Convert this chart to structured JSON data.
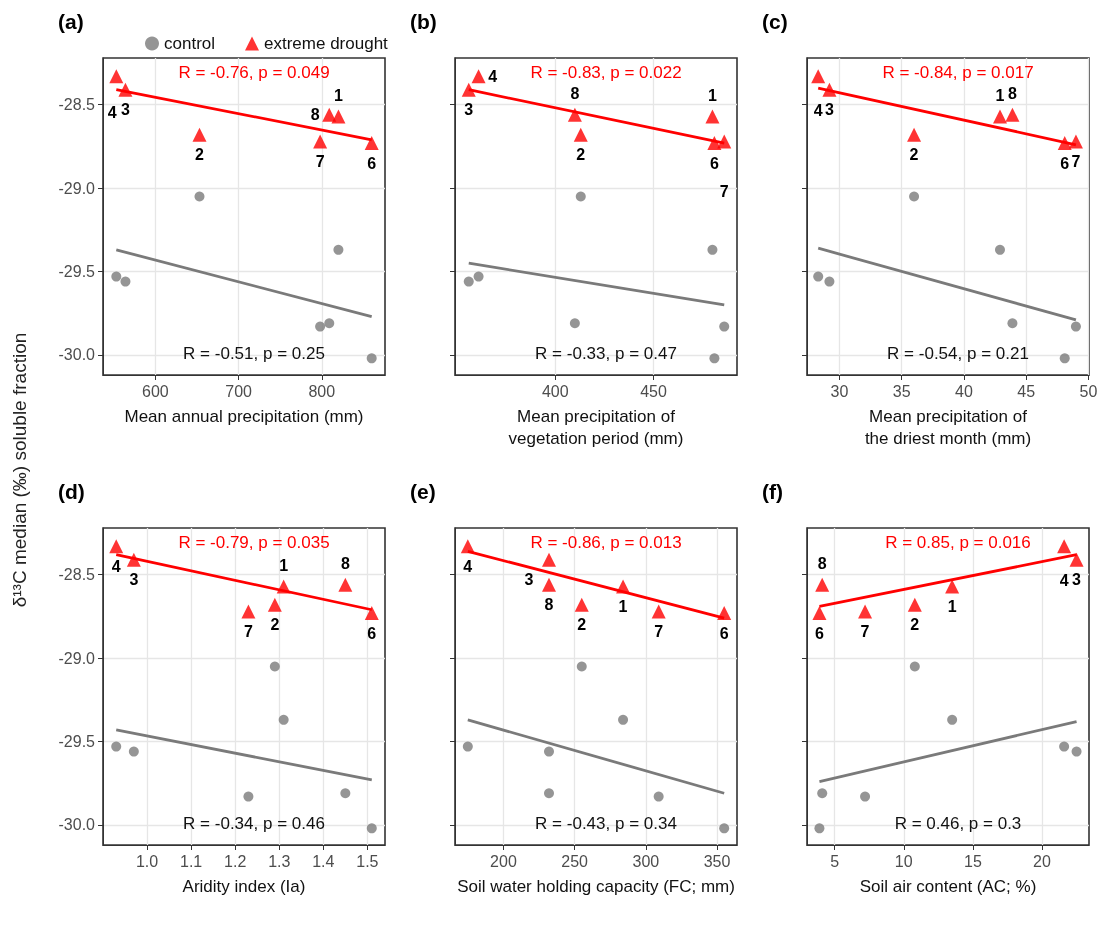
{
  "chart_data": [
    {
      "type": "scatter",
      "title": "(a)",
      "xlabel": "Mean annual precipitation (mm)",
      "ylabel": "δ¹³C median (‰) soluble fraction",
      "x": [
        820,
        653,
        564,
        553,
        860,
        798,
        809
      ],
      "xlim": [
        537,
        876
      ],
      "xticks": [
        600,
        700,
        800
      ],
      "ylim": [
        -30.12,
        -28.22
      ],
      "yticks": [
        {
          "value": -30,
          "label": "-30.0"
        },
        {
          "value": -29.5,
          "label": "-29.5"
        },
        {
          "value": -29,
          "label": "-29.0"
        },
        {
          "value": -28.5,
          "label": "-28.5"
        }
      ],
      "grid": true,
      "legend": "top",
      "series": [
        {
          "name": "control",
          "color": "#7a7a7a",
          "marker": "circle",
          "values": [
            -29.37,
            -29.05,
            -29.56,
            -29.53,
            -30.02,
            -29.83,
            -29.81
          ]
        },
        {
          "name": "extreme drought",
          "color": "#ff0000",
          "marker": "triangle",
          "values": [
            -28.57,
            -28.68,
            -28.41,
            -28.33,
            -28.73,
            -28.72,
            -28.56
          ]
        },
        {
          "type": "line",
          "color": "#7a7a7a",
          "marker": "none",
          "x": [
            553,
            860
          ],
          "values": [
            -29.37,
            -29.77
          ]
        },
        {
          "type": "line",
          "color": "#ff0000",
          "marker": "none",
          "x": [
            553,
            860
          ],
          "values": [
            -28.41,
            -28.71
          ]
        }
      ],
      "annotations": [
        "R = -0.76, p = 0.049",
        "R = -0.51, p = 0.25",
        {
          "text": "1",
          "x": 820,
          "y": -28.57
        },
        {
          "text": "2",
          "x": 653,
          "y": -28.68
        },
        {
          "text": "3",
          "x": 564,
          "y": -28.41
        },
        {
          "text": "4",
          "x": 553,
          "y": -28.33
        },
        {
          "text": "6",
          "x": 860,
          "y": -28.73
        },
        {
          "text": "7",
          "x": 798,
          "y": -28.72
        },
        {
          "text": "8",
          "x": 809,
          "y": -28.56
        }
      ]
    },
    {
      "type": "scatter",
      "title": "(b)",
      "xlabel": "Mean precipitation of vegetation period (mm)",
      "x": [
        480,
        413,
        356,
        361,
        481,
        486,
        410
      ],
      "xlim": [
        349,
        492.5
      ],
      "xticks": [
        400,
        450
      ],
      "ylim": [
        -30.12,
        -28.22
      ],
      "yticks": [
        -30,
        -29.5,
        -29,
        -28.5
      ],
      "grid": true,
      "tick_labels": "x",
      "series": [
        {
          "color": "#7a7a7a",
          "marker": "circle",
          "values": [
            -29.37,
            -29.05,
            -29.56,
            -29.53,
            -30.02,
            -29.83,
            -29.81
          ]
        },
        {
          "color": "#ff0000",
          "marker": "triangle",
          "values": [
            -28.57,
            -28.68,
            -28.41,
            -28.33,
            -28.73,
            -28.72,
            -28.56
          ]
        },
        {
          "type": "line",
          "color": "#7a7a7a",
          "marker": "none",
          "x": [
            356,
            486
          ],
          "values": [
            -29.45,
            -29.7
          ]
        },
        {
          "type": "line",
          "color": "#ff0000",
          "marker": "none",
          "x": [
            356,
            486
          ],
          "values": [
            -28.41,
            -28.73
          ]
        }
      ],
      "annotations": [
        "R = -0.83, p = 0.022",
        "R = -0.33, p = 0.47",
        {
          "text": "1",
          "x": 480,
          "y": -28.57
        },
        {
          "text": "2",
          "x": 413,
          "y": -28.68
        },
        {
          "text": "3",
          "x": 356,
          "y": -28.41
        },
        {
          "text": "4",
          "x": 361,
          "y": -28.33
        },
        {
          "text": "6",
          "x": 481,
          "y": -28.73
        },
        {
          "text": "7",
          "x": 486,
          "y": -28.72
        },
        {
          "text": "8",
          "x": 410,
          "y": -28.56
        }
      ]
    },
    {
      "type": "scatter",
      "title": "(c)",
      "xlabel": "Mean precipitation of the driest month (mm)",
      "x": [
        42.9,
        36,
        29.2,
        28.3,
        48.1,
        49,
        43.9
      ],
      "xlim": [
        27.4,
        50.05
      ],
      "xticks": [
        30,
        35,
        40,
        45,
        50
      ],
      "ylim": [
        -30.12,
        -28.22
      ],
      "yticks": [
        -30,
        -29.5,
        -29,
        -28.5
      ],
      "grid": true,
      "tick_labels": "x",
      "series": [
        {
          "color": "#7a7a7a",
          "marker": "circle",
          "values": [
            -29.37,
            -29.05,
            -29.56,
            -29.53,
            -30.02,
            -29.83,
            -29.81
          ]
        },
        {
          "color": "#ff0000",
          "marker": "triangle",
          "values": [
            -28.57,
            -28.68,
            -28.41,
            -28.33,
            -28.73,
            -28.72,
            -28.56
          ]
        },
        {
          "type": "line",
          "color": "#7a7a7a",
          "marker": "none",
          "x": [
            28.3,
            49
          ],
          "values": [
            -29.36,
            -29.79
          ]
        },
        {
          "type": "line",
          "color": "#ff0000",
          "marker": "none",
          "x": [
            28.3,
            49
          ],
          "values": [
            -28.4,
            -28.74
          ]
        }
      ],
      "annotations": [
        "R = -0.84, p = 0.017",
        "R = -0.54, p = 0.21",
        {
          "text": "1",
          "x": 42.9,
          "y": -28.57
        },
        {
          "text": "2",
          "x": 36,
          "y": -28.68
        },
        {
          "text": "3",
          "x": 29.2,
          "y": -28.41
        },
        {
          "text": "4",
          "x": 28.3,
          "y": -28.33
        },
        {
          "text": "6",
          "x": 48.1,
          "y": -28.73
        },
        {
          "text": "7",
          "x": 49,
          "y": -28.72
        },
        {
          "text": "8",
          "x": 43.9,
          "y": -28.56
        }
      ]
    },
    {
      "type": "scatter",
      "title": "(d)",
      "xlabel": "Aridity index (Ia)",
      "x": [
        1.31,
        1.29,
        0.97,
        0.93,
        1.51,
        1.23,
        1.45
      ],
      "xlim": [
        0.9,
        1.54
      ],
      "xticks": [
        {
          "value": 1,
          "label": "1.0"
        },
        1.1,
        1.2,
        1.3,
        1.4,
        1.5
      ],
      "ylim": [
        -30.12,
        -28.22
      ],
      "yticks": [
        {
          "value": -30,
          "label": "-30.0"
        },
        {
          "value": -29.5,
          "label": "-29.5"
        },
        {
          "value": -29,
          "label": "-29.0"
        },
        {
          "value": -28.5,
          "label": "-28.5"
        }
      ],
      "grid": true,
      "series": [
        {
          "color": "#7a7a7a",
          "marker": "circle",
          "values": [
            -29.37,
            -29.05,
            -29.56,
            -29.53,
            -30.02,
            -29.83,
            -29.81
          ]
        },
        {
          "color": "#ff0000",
          "marker": "triangle",
          "values": [
            -28.57,
            -28.68,
            -28.41,
            -28.33,
            -28.73,
            -28.72,
            -28.56
          ]
        },
        {
          "type": "line",
          "color": "#7a7a7a",
          "marker": "none",
          "x": [
            0.93,
            1.51
          ],
          "values": [
            -29.43,
            -29.73
          ]
        },
        {
          "type": "line",
          "color": "#ff0000",
          "marker": "none",
          "x": [
            0.93,
            1.51
          ],
          "values": [
            -28.38,
            -28.71
          ]
        }
      ],
      "annotations": [
        "R = -0.79, p = 0.035",
        "R = -0.34, p = 0.46",
        {
          "text": "1",
          "x": 1.31,
          "y": -28.57
        },
        {
          "text": "2",
          "x": 1.29,
          "y": -28.68
        },
        {
          "text": "3",
          "x": 0.97,
          "y": -28.41
        },
        {
          "text": "4",
          "x": 0.93,
          "y": -28.33
        },
        {
          "text": "6",
          "x": 1.51,
          "y": -28.73
        },
        {
          "text": "7",
          "x": 1.23,
          "y": -28.72
        },
        {
          "text": "8",
          "x": 1.45,
          "y": -28.56
        }
      ]
    },
    {
      "type": "scatter",
      "title": "(e)",
      "xlabel": "Soil water holding capacity (FC; mm)",
      "x": [
        284,
        255,
        232,
        175,
        355,
        309,
        232
      ],
      "xlim": [
        166,
        364
      ],
      "xticks": [
        200,
        250,
        300,
        350
      ],
      "ylim": [
        -30.12,
        -28.22
      ],
      "yticks": [
        -30,
        -29.5,
        -29,
        -28.5
      ],
      "grid": true,
      "tick_labels": "x",
      "series": [
        {
          "color": "#7a7a7a",
          "marker": "circle",
          "values": [
            -29.37,
            -29.05,
            -29.56,
            -29.53,
            -30.02,
            -29.83,
            -29.81
          ]
        },
        {
          "color": "#ff0000",
          "marker": "triangle",
          "values": [
            -28.57,
            -28.68,
            -28.41,
            -28.33,
            -28.73,
            -28.72,
            -28.56
          ]
        },
        {
          "type": "line",
          "color": "#7a7a7a",
          "marker": "none",
          "x": [
            175,
            355
          ],
          "values": [
            -29.37,
            -29.81
          ]
        },
        {
          "type": "line",
          "color": "#ff0000",
          "marker": "none",
          "x": [
            175,
            355
          ],
          "values": [
            -28.36,
            -28.76
          ]
        }
      ],
      "annotations": [
        "R = -0.86, p = 0.013",
        "R = -0.43, p = 0.34",
        {
          "text": "1",
          "x": 284,
          "y": -28.57
        },
        {
          "text": "2",
          "x": 255,
          "y": -28.68
        },
        {
          "text": "3",
          "x": 232,
          "y": -28.41
        },
        {
          "text": "4",
          "x": 175,
          "y": -28.33
        },
        {
          "text": "6",
          "x": 355,
          "y": -28.73
        },
        {
          "text": "7",
          "x": 309,
          "y": -28.72
        },
        {
          "text": "8",
          "x": 232,
          "y": -28.56
        }
      ]
    },
    {
      "type": "scatter",
      "title": "(f)",
      "xlabel": "Soil air content (AC; %)",
      "x": [
        13.5,
        10.8,
        22.5,
        21.6,
        3.9,
        7.2,
        4.1
      ],
      "xlim": [
        3.0,
        23.4
      ],
      "xticks": [
        5,
        10,
        15,
        20
      ],
      "ylim": [
        -30.12,
        -28.22
      ],
      "yticks": [
        -30,
        -29.5,
        -29,
        -28.5
      ],
      "grid": true,
      "tick_labels": "x",
      "series": [
        {
          "color": "#7a7a7a",
          "marker": "circle",
          "values": [
            -29.37,
            -29.05,
            -29.56,
            -29.53,
            -30.02,
            -29.83,
            -29.81
          ]
        },
        {
          "color": "#ff0000",
          "marker": "triangle",
          "values": [
            -28.57,
            -28.68,
            -28.41,
            -28.33,
            -28.73,
            -28.72,
            -28.56
          ]
        },
        {
          "type": "line",
          "color": "#7a7a7a",
          "marker": "none",
          "x": [
            3.9,
            22.5
          ],
          "values": [
            -29.74,
            -29.38
          ]
        },
        {
          "type": "line",
          "color": "#ff0000",
          "marker": "none",
          "x": [
            3.9,
            22.5
          ],
          "values": [
            -28.69,
            -28.38
          ]
        }
      ],
      "annotations": [
        "R = 0.85, p = 0.016",
        "R = 0.46, p = 0.3",
        {
          "text": "1",
          "x": 13.5,
          "y": -28.57
        },
        {
          "text": "2",
          "x": 10.8,
          "y": -28.68
        },
        {
          "text": "3",
          "x": 22.5,
          "y": -28.41
        },
        {
          "text": "4",
          "x": 21.6,
          "y": -28.33
        },
        {
          "text": "6",
          "x": 3.9,
          "y": -28.73
        },
        {
          "text": "7",
          "x": 7.2,
          "y": -28.72
        },
        {
          "text": "8",
          "x": 4.1,
          "y": -28.56
        }
      ]
    }
  ]
}
